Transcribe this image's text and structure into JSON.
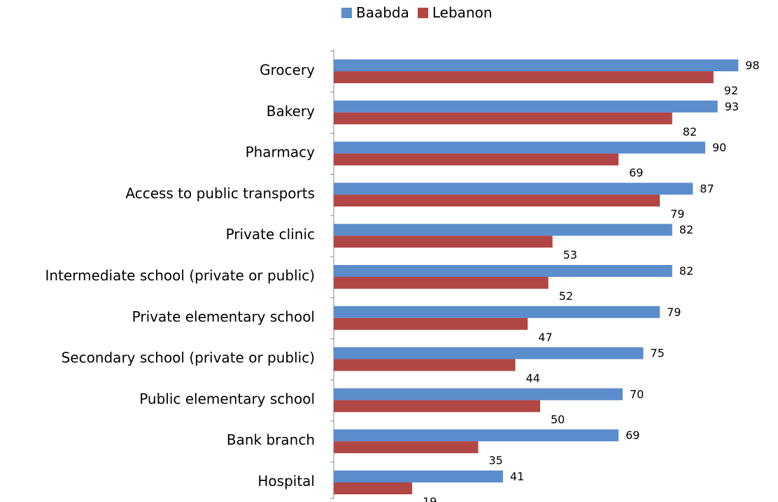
{
  "chart_data": {
    "type": "bar",
    "orientation": "horizontal",
    "categories": [
      "Grocery",
      "Bakery",
      "Pharmacy",
      "Access to public transports",
      "Private clinic",
      "Intermediate school (private or public)",
      "Private elementary school",
      "Secondary school (private or public)",
      "Public elementary school",
      "Bank branch",
      "Hospital"
    ],
    "series": [
      {
        "name": "Baabda",
        "color": "#5b8ccb",
        "values": [
          98,
          93,
          90,
          87,
          82,
          82,
          79,
          75,
          70,
          69,
          41
        ]
      },
      {
        "name": "Lebanon",
        "color": "#b24645",
        "values": [
          92,
          82,
          69,
          79,
          53,
          52,
          47,
          44,
          50,
          35,
          19
        ]
      }
    ],
    "xlim": [
      0,
      100
    ],
    "legend_position": "top",
    "grid": false
  }
}
